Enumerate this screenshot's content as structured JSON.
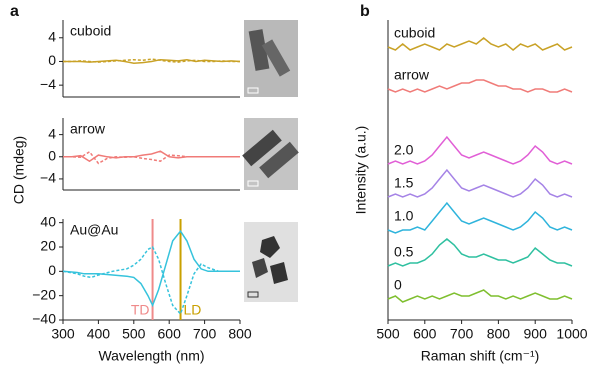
{
  "chart_data": [
    {
      "type": "line",
      "panel": "a",
      "label": "cuboid",
      "xlim": [
        300,
        800
      ],
      "ylim": [
        -6,
        7
      ],
      "yticks": [
        4,
        0,
        {
          "value": -4,
          "label": "−4"
        }
      ],
      "x": [
        300,
        325,
        350,
        375,
        400,
        425,
        450,
        475,
        500,
        525,
        550,
        575,
        600,
        625,
        650,
        675,
        700,
        725,
        750,
        775,
        800
      ],
      "series": [
        {
          "color": "#c9a227",
          "style": "solid",
          "values": [
            0,
            0,
            0,
            -0.1,
            0,
            0.1,
            0.2,
            0,
            -0.3,
            -0.2,
            0,
            0.3,
            0.2,
            0.1,
            0.3,
            0,
            0.2,
            0.1,
            0,
            0.1,
            0
          ]
        },
        {
          "color": "#c9a227",
          "style": "dashed",
          "values": [
            0,
            0,
            0.1,
            0,
            -0.1,
            0,
            0.1,
            0.2,
            0.3,
            0.2,
            0.4,
            0.2,
            0,
            -0.1,
            0.1,
            0.2,
            0,
            0,
            0.1,
            0,
            0
          ]
        }
      ]
    },
    {
      "type": "line",
      "label": "arrow",
      "ylabel": "CD (mdeg)",
      "xlim": [
        300,
        800
      ],
      "ylim": [
        -6,
        7
      ],
      "yticks": [
        4,
        0,
        {
          "value": -4,
          "label": "−4"
        }
      ],
      "x": [
        300,
        325,
        350,
        375,
        400,
        425,
        450,
        475,
        500,
        525,
        550,
        575,
        600,
        625,
        650,
        675,
        700,
        725,
        750,
        775,
        800
      ],
      "series": [
        {
          "color": "#f07b78",
          "style": "solid",
          "values": [
            0,
            0,
            0.2,
            -0.8,
            0.3,
            0,
            -0.2,
            0,
            0,
            0.3,
            0.5,
            1.0,
            0,
            -0.2,
            0,
            0,
            0,
            0,
            0,
            0,
            0
          ]
        },
        {
          "color": "#f07b78",
          "style": "dashed",
          "values": [
            0,
            0,
            -0.1,
            0.9,
            -1.2,
            -0.3,
            0,
            -0.1,
            0,
            -0.3,
            -0.5,
            -0.8,
            0.3,
            0.2,
            0,
            0,
            0,
            0,
            0,
            0,
            0
          ]
        }
      ]
    },
    {
      "type": "line",
      "label": "Au@Au",
      "xlabel": "Wavelength (nm)",
      "xlim": [
        300,
        800
      ],
      "ylim": [
        -40,
        43
      ],
      "xticks": [
        300,
        400,
        500,
        600,
        700,
        800
      ],
      "yticks": [
        40,
        20,
        0,
        {
          "value": -20,
          "label": "−20"
        },
        {
          "value": -40,
          "label": "−40"
        }
      ],
      "x": [
        300,
        340,
        360,
        380,
        400,
        440,
        480,
        500,
        520,
        540,
        553,
        570,
        590,
        610,
        632,
        650,
        670,
        690,
        710,
        740,
        770,
        800
      ],
      "series": [
        {
          "color": "#36c3dc",
          "style": "solid",
          "values": [
            0,
            -1,
            -2,
            -2,
            -2,
            -3,
            -4,
            -5,
            -10,
            -20,
            -28,
            -15,
            5,
            25,
            33,
            25,
            10,
            2,
            0,
            0,
            0,
            0
          ]
        },
        {
          "color": "#36c3dc",
          "style": "dashed",
          "values": [
            0,
            -2,
            -4,
            -5,
            -3,
            0,
            2,
            5,
            10,
            18,
            20,
            10,
            -10,
            -28,
            -35,
            -20,
            -2,
            6,
            3,
            0,
            0,
            0
          ]
        }
      ],
      "annotations": [
        {
          "text": "TD",
          "x": 553,
          "color": "#ef8a8a"
        },
        {
          "text": "LD",
          "x": 632,
          "color": "#c9a000"
        }
      ]
    },
    {
      "type": "line",
      "panel": "b",
      "xlabel": "Raman shift (cm⁻¹)",
      "ylabel": "Intensity (a.u.)",
      "xlim": [
        500,
        1000
      ],
      "ylim": [
        0,
        100
      ],
      "xticks": [
        500,
        600,
        700,
        800,
        900,
        1000
      ],
      "x": [
        500,
        520,
        540,
        560,
        580,
        600,
        620,
        640,
        660,
        680,
        700,
        720,
        740,
        760,
        780,
        800,
        820,
        840,
        860,
        880,
        900,
        920,
        940,
        960,
        980,
        1000
      ],
      "series": [
        {
          "name": "cuboid",
          "color": "#c9a227",
          "values": [
            91,
            90,
            92,
            90,
            91,
            92,
            91,
            90,
            92,
            91,
            92,
            93,
            92,
            94,
            92,
            91,
            92,
            90,
            92,
            91,
            92,
            90,
            91,
            92,
            90,
            91
          ]
        },
        {
          "name": "arrow",
          "color": "#f07b78",
          "values": [
            77,
            76,
            77,
            76,
            77,
            76,
            77,
            78,
            77,
            78,
            79,
            79,
            80,
            80,
            79,
            78,
            78,
            77,
            77,
            76,
            77,
            77,
            76,
            76,
            77,
            76
          ]
        },
        {
          "name": "2.0",
          "color": "#e15fd6",
          "values": [
            52,
            53,
            52,
            53,
            52,
            53,
            55,
            58,
            61,
            58,
            55,
            54,
            55,
            56,
            55,
            54,
            53,
            52,
            53,
            55,
            58,
            56,
            53,
            52,
            53,
            52
          ]
        },
        {
          "name": "1.5",
          "color": "#a583e6",
          "values": [
            41,
            42,
            41,
            42,
            41,
            42,
            44,
            47,
            50,
            47,
            44,
            43,
            44,
            45,
            44,
            43,
            42,
            41,
            42,
            44,
            47,
            45,
            42,
            41,
            42,
            41
          ]
        },
        {
          "name": "1.0",
          "color": "#2fb4dc",
          "values": [
            30,
            29,
            30,
            30,
            31,
            30,
            33,
            36,
            39,
            36,
            33,
            32,
            33,
            34,
            33,
            32,
            31,
            30,
            31,
            33,
            36,
            34,
            31,
            30,
            31,
            30
          ]
        },
        {
          "name": "0.5",
          "color": "#2fc0a0",
          "values": [
            18,
            19,
            18,
            19,
            19,
            20,
            22,
            25,
            27,
            25,
            22,
            21,
            21,
            22,
            21,
            20,
            20,
            19,
            20,
            21,
            24,
            22,
            20,
            19,
            19,
            18
          ]
        },
        {
          "name": "0",
          "color": "#7fbf2f",
          "values": [
            7,
            8,
            6,
            7,
            8,
            7,
            8,
            7,
            8,
            9,
            8,
            8,
            9,
            10,
            8,
            8,
            7,
            8,
            7,
            8,
            9,
            8,
            7,
            7,
            8,
            7
          ]
        }
      ]
    }
  ]
}
